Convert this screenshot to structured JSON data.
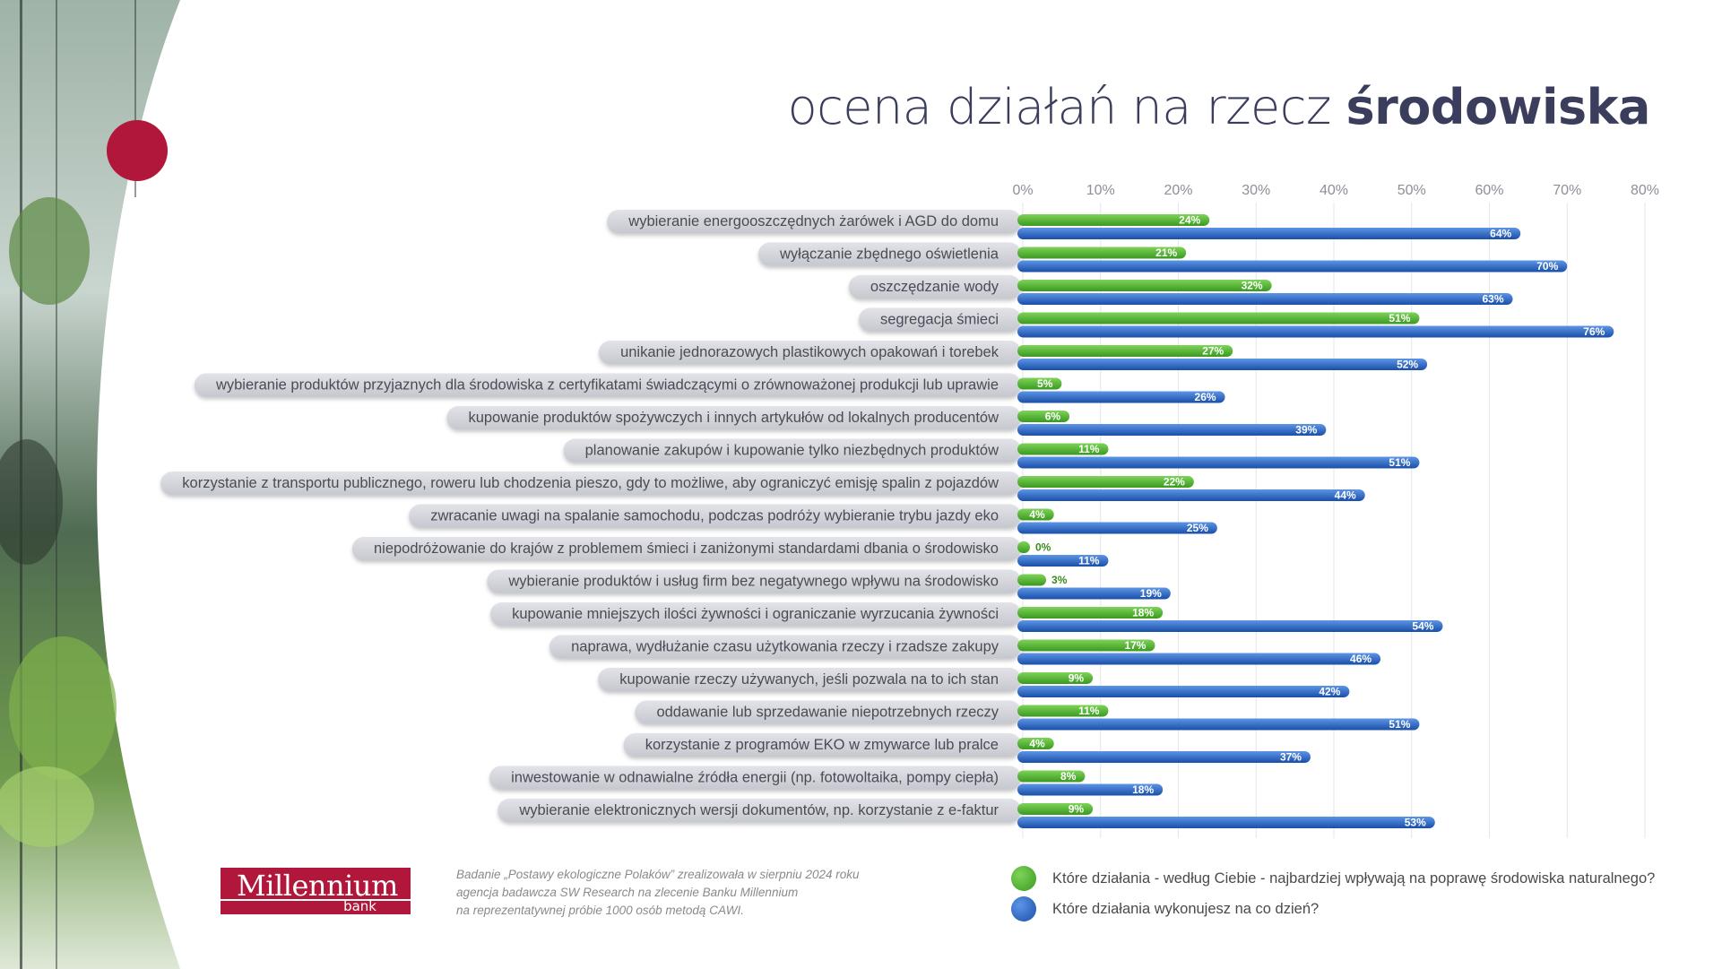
{
  "title": {
    "light": "ocena działań na rzecz ",
    "bold": "środowiska"
  },
  "logo": {
    "name": "Millennium",
    "sub": "bank"
  },
  "source_lines": [
    "Badanie „Postawy ekologiczne Polaków” zrealizowała w sierpniu 2024 roku",
    "agencja badawcza SW Research na zlecenie Banku Millennium",
    "na reprezentatywnej próbie 1000 osób metodą CAWI."
  ],
  "colors": {
    "green": "#44b02a",
    "blue": "#1f5fc0",
    "label_bg": "#d3d4da",
    "accent_red": "#b0173a"
  },
  "chart_data": {
    "type": "bar",
    "orientation": "horizontal",
    "xlim": [
      0,
      80
    ],
    "ticks": [
      0,
      10,
      20,
      30,
      40,
      50,
      60,
      70,
      80
    ],
    "tick_labels": [
      "0%",
      "10%",
      "20%",
      "30%",
      "40%",
      "50%",
      "60%",
      "70%",
      "80%"
    ],
    "unit_suffix": "%",
    "categories": [
      "wybieranie energooszczędnych żarówek i AGD do domu",
      "wyłączanie zbędnego oświetlenia",
      "oszczędzanie wody",
      "segregacja śmieci",
      "unikanie jednorazowych plastikowych opakowań i torebek",
      "wybieranie produktów przyjaznych dla środowiska z certyfikatami świadczącymi o zrównoważonej produkcji lub uprawie",
      "kupowanie produktów spożywczych i innych artykułów od lokalnych producentów",
      "planowanie zakupów i kupowanie tylko niezbędnych produktów",
      "korzystanie z transportu publicznego, roweru lub chodzenia pieszo, gdy to możliwe, aby ograniczyć emisję spalin z pojazdów",
      "zwracanie uwagi na spalanie samochodu, podczas podróży wybieranie trybu jazdy eko",
      "niepodróżowanie do krajów z problemem śmieci i zaniżonymi standardami dbania o środowisko",
      "wybieranie produktów i usług firm bez negatywnego wpływu na środowisko",
      "kupowanie mniejszych ilości żywności i ograniczanie wyrzucania żywności",
      "naprawa, wydłużanie czasu użytkowania rzeczy i rzadsze zakupy",
      "kupowanie rzeczy używanych, jeśli pozwala na to ich stan",
      "oddawanie lub sprzedawanie niepotrzebnych rzeczy",
      "korzystanie z programów EKO w zmywarce lub pralce",
      "inwestowanie w odnawialne źródła energii (np. fotowoltaika, pompy ciepła)",
      "wybieranie elektronicznych wersji dokumentów, np. korzystanie z e-faktur"
    ],
    "series": [
      {
        "name": "Które działania - według Ciebie - najbardziej wpływają na poprawę środowiska naturalnego?",
        "color": "#44b02a",
        "values": [
          24,
          21,
          32,
          51,
          27,
          5,
          6,
          11,
          22,
          4,
          0,
          3,
          18,
          17,
          9,
          11,
          4,
          8,
          9
        ]
      },
      {
        "name": "Które działania wykonujesz na co dzień?",
        "color": "#1f5fc0",
        "values": [
          64,
          70,
          63,
          76,
          52,
          26,
          39,
          51,
          44,
          25,
          11,
          19,
          54,
          46,
          42,
          51,
          37,
          18,
          53
        ]
      }
    ],
    "legend_position": "bottom-right",
    "grid": true
  }
}
